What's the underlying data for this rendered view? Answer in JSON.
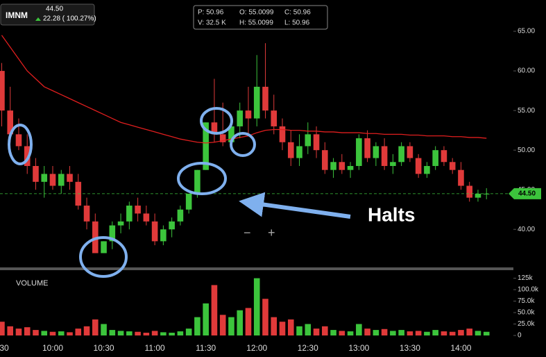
{
  "chart_data": [
    {
      "type": "candlestick",
      "x": [
        570,
        575,
        580,
        585,
        590,
        595,
        600,
        605,
        610,
        615,
        620,
        625,
        630,
        635,
        640,
        645,
        650,
        655,
        660,
        665,
        670,
        675,
        680,
        685,
        690,
        695,
        700,
        705,
        710,
        715,
        720,
        725,
        730,
        735,
        740,
        745,
        750,
        755,
        760,
        765,
        770,
        775,
        780,
        785,
        790,
        795,
        800,
        805,
        810,
        815,
        820,
        825,
        830,
        835,
        840,
        845,
        850,
        855
      ],
      "open": [
        60,
        55,
        52,
        50.5,
        48,
        46,
        47,
        45.5,
        47,
        46,
        43,
        41,
        37,
        38.5,
        40.5,
        41,
        43,
        42,
        41,
        38.5,
        40,
        41,
        42.5,
        44.5,
        47.5,
        53.5,
        52,
        51,
        53,
        55,
        54,
        58,
        55,
        53,
        51,
        49,
        50.5,
        52,
        50,
        47.5,
        48.5,
        47.5,
        48,
        51.5,
        49,
        50.5,
        48,
        48.5,
        50.5,
        49,
        47,
        48,
        50,
        48.5,
        47.5,
        45.5,
        44,
        44.5
      ],
      "high": [
        61,
        58,
        54,
        52,
        49,
        48,
        48,
        47.5,
        48,
        47,
        44,
        42,
        38.5,
        41,
        42,
        43.5,
        44,
        43,
        42,
        40.5,
        41.5,
        43,
        44.5,
        47.5,
        53.5,
        59,
        56,
        54,
        56,
        58,
        62,
        63.5,
        57,
        54,
        52.5,
        52,
        53.5,
        53,
        51,
        49,
        49.5,
        48.5,
        52,
        52.5,
        51,
        51.5,
        49.5,
        51,
        51,
        49.5,
        48.5,
        50.5,
        50.5,
        49,
        48.5,
        46,
        45,
        45.2
      ],
      "low": [
        53,
        51,
        50,
        47,
        45,
        44,
        45,
        44.5,
        45,
        42.5,
        40,
        37,
        37,
        37.5,
        39.5,
        40,
        41,
        40.5,
        38,
        38,
        39,
        40.5,
        42,
        44,
        47.5,
        51,
        50.5,
        50,
        51.5,
        52,
        53,
        54,
        52,
        50,
        48,
        48,
        49.5,
        49,
        47,
        46.5,
        47,
        46.5,
        47.5,
        48.5,
        48,
        47.5,
        47,
        48,
        48.5,
        46.5,
        46.5,
        47.5,
        48,
        47,
        45,
        43.5,
        43.5,
        43.8
      ],
      "close": [
        55,
        52,
        50.5,
        48,
        46,
        47,
        45.5,
        47,
        46,
        43,
        41,
        37,
        38.5,
        40.5,
        41,
        43,
        42,
        41,
        38.5,
        40,
        41,
        42.5,
        44.5,
        47.5,
        53.5,
        52,
        51,
        53,
        55,
        54,
        58,
        55,
        53,
        51,
        49,
        50.5,
        52,
        50,
        47.5,
        48.5,
        47.5,
        48,
        51.5,
        49,
        50.5,
        48,
        48.5,
        50.5,
        49,
        47,
        48,
        50,
        48.5,
        47.5,
        45.5,
        44,
        44.5,
        44.5
      ],
      "up_color": "#3cc43c",
      "down_color": "#e03a3a",
      "overlay_line": {
        "color": "#e01e1e",
        "values": [
          64.5,
          63,
          61.5,
          60,
          59,
          58,
          57.5,
          57,
          56.5,
          56,
          55.5,
          55,
          54.5,
          54,
          53.5,
          53.2,
          52.9,
          52.6,
          52.3,
          52,
          51.7,
          51.4,
          51.2,
          51,
          50.9,
          51,
          51.2,
          51.4,
          51.6,
          51.8,
          52.2,
          52.5,
          52.6,
          52.6,
          52.5,
          52.5,
          52.4,
          52.4,
          52.3,
          52.3,
          52.2,
          52.2,
          52.2,
          52.1,
          52.1,
          52,
          52,
          52,
          51.9,
          51.9,
          51.8,
          51.8,
          51.8,
          51.7,
          51.7,
          51.6,
          51.6,
          51.5
        ]
      },
      "last_price": {
        "value": 44.5,
        "label": "44.50",
        "color": "#3cc43c"
      },
      "xlim": [
        569,
        870
      ],
      "xticks": [
        {
          "value": 570,
          "label": "30"
        },
        {
          "value": 600,
          "label": "10:00"
        },
        {
          "value": 630,
          "label": "10:30"
        },
        {
          "value": 660,
          "label": "11:00"
        },
        {
          "value": 690,
          "label": "11:30"
        },
        {
          "value": 720,
          "label": "12:00"
        },
        {
          "value": 750,
          "label": "12:30"
        },
        {
          "value": 780,
          "label": "13:00"
        },
        {
          "value": 810,
          "label": "13:30"
        },
        {
          "value": 840,
          "label": "14:00"
        }
      ],
      "ylim": [
        35.2,
        68.95
      ],
      "yticks": [
        {
          "value": 40,
          "label": "40.00"
        },
        {
          "value": 45,
          "label": "45.00"
        },
        {
          "value": 50,
          "label": "50.00"
        },
        {
          "value": 55,
          "label": "55.00"
        },
        {
          "value": 60,
          "label": "60.00"
        },
        {
          "value": 65,
          "label": "65.00"
        }
      ],
      "annotation": "Halts"
    },
    {
      "type": "bar",
      "title": "VOLUME",
      "values": [
        30000,
        20000,
        15000,
        18000,
        12000,
        10000,
        8000,
        9000,
        7000,
        15000,
        20000,
        35000,
        25000,
        12000,
        10000,
        9000,
        8000,
        6000,
        10000,
        7000,
        6000,
        9000,
        15000,
        40000,
        70000,
        110000,
        45000,
        40000,
        55000,
        60000,
        125000,
        80000,
        40000,
        30000,
        35000,
        20000,
        25000,
        15000,
        20000,
        12000,
        10000,
        9000,
        25000,
        15000,
        12000,
        14000,
        10000,
        12000,
        9000,
        10000,
        8000,
        12000,
        9000,
        8000,
        12000,
        15000,
        10000,
        8000
      ],
      "ylim": [
        0,
        141000
      ],
      "yticks": [
        0,
        {
          "value": 25000,
          "label": "25.0k"
        },
        {
          "value": 50000,
          "label": "50.0k"
        },
        {
          "value": 75000,
          "label": "75.0k"
        },
        {
          "value": 100000,
          "label": "100.0k"
        },
        {
          "value": 125000,
          "label": "125k"
        }
      ]
    }
  ],
  "quote": {
    "ticker": "IMNM",
    "price": "44.50",
    "change": "22.28 ( 100.27%)"
  },
  "info": [
    [
      "P: 50.96",
      "O: 55.0099",
      "C: 50.96"
    ],
    [
      "V: 32.5 K",
      "H: 55.0099",
      "L: 50.96"
    ]
  ]
}
